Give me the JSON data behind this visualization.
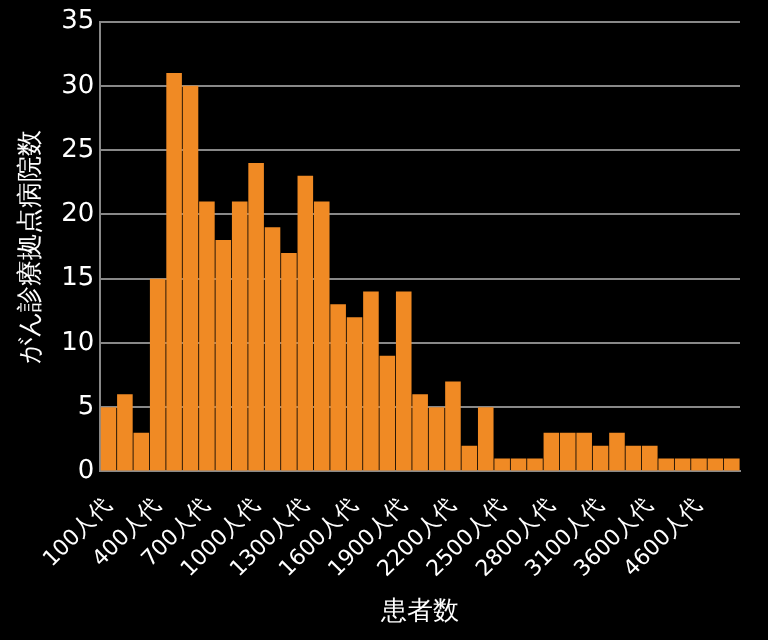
{
  "chart_data": {
    "type": "bar",
    "xlabel": "患者数",
    "ylabel": "がん診療拠点病院数",
    "categories": [
      "100人代",
      null,
      null,
      "400人代",
      null,
      null,
      "700人代",
      null,
      null,
      "1000人代",
      null,
      null,
      "1300人代",
      null,
      null,
      "1600人代",
      null,
      null,
      "1900人代",
      null,
      null,
      "2200人代",
      null,
      null,
      "2500人代",
      null,
      null,
      "2800人代",
      null,
      null,
      "3100人代",
      null,
      null,
      "3600人代",
      null,
      null,
      "4600人代",
      null,
      null
    ],
    "values": [
      5,
      6,
      3,
      15,
      31,
      30,
      21,
      18,
      21,
      24,
      19,
      17,
      23,
      21,
      13,
      12,
      14,
      9,
      14,
      6,
      5,
      7,
      2,
      5,
      1,
      1,
      1,
      3,
      3,
      3,
      2,
      3,
      2,
      2,
      1,
      1,
      1,
      1,
      1
    ],
    "color": "#f08a24",
    "ylim": [
      0,
      35
    ],
    "yticks": [
      0,
      5,
      10,
      15,
      20,
      25,
      30,
      35
    ],
    "grid": "y"
  }
}
